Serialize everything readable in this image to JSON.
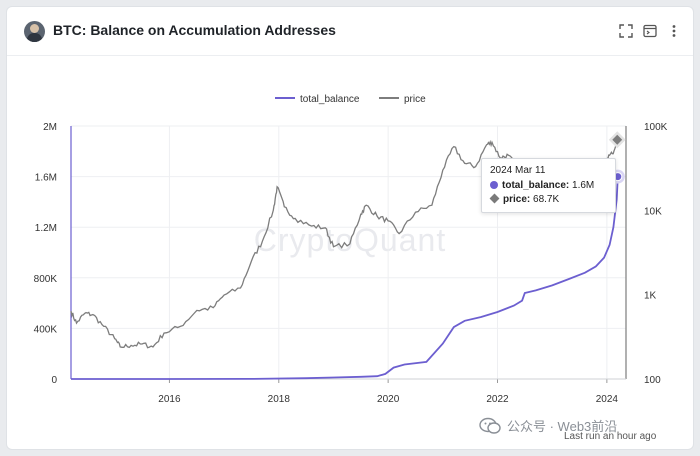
{
  "header": {
    "title": "BTC: Balance on Accumulation Addresses"
  },
  "icons": {
    "expand": "expand-icon",
    "console": "terminal-icon",
    "more": "more-vertical-icon",
    "avatar": "user-avatar"
  },
  "watermark": {
    "text": "公众号 · Web3前沿"
  },
  "footer": {
    "last_run": "Last run an hour ago"
  },
  "tooltip": {
    "date": "2024 Mar 11",
    "balance_label": "total_balance:",
    "balance_value": "1.6M",
    "price_label": "price:",
    "price_value": "68.7K"
  },
  "colors": {
    "balance": "#6c5fd0",
    "price": "#7d7d7d"
  },
  "chart_data": {
    "type": "line",
    "title": "BTC: Balance on Accumulation Addresses",
    "legend": [
      "total_balance",
      "price"
    ],
    "legend_position": "top-center",
    "x_ticks": [
      "2016",
      "2018",
      "2020",
      "2022",
      "2024"
    ],
    "x_range": [
      2014.2,
      2024.35
    ],
    "y_left": {
      "label": "",
      "ticks": [
        "0",
        "400K",
        "800K",
        "1.2M",
        "1.6M",
        "2M"
      ],
      "range": [
        0,
        2000000
      ]
    },
    "y_right": {
      "label": "",
      "scale": "log",
      "ticks": [
        "100",
        "1K",
        "10K",
        "100K"
      ],
      "range": [
        100,
        100000
      ]
    },
    "grid": true,
    "series": [
      {
        "name": "total_balance",
        "axis": "left",
        "points": [
          [
            2014.2,
            0
          ],
          [
            2016.0,
            0
          ],
          [
            2017.5,
            1000
          ],
          [
            2018.5,
            6000
          ],
          [
            2019.0,
            12000
          ],
          [
            2019.5,
            17000
          ],
          [
            2019.8,
            22000
          ],
          [
            2019.95,
            40000
          ],
          [
            2020.1,
            90000
          ],
          [
            2020.3,
            115000
          ],
          [
            2020.7,
            135000
          ],
          [
            2021.0,
            280000
          ],
          [
            2021.2,
            410000
          ],
          [
            2021.4,
            460000
          ],
          [
            2021.7,
            490000
          ],
          [
            2022.0,
            530000
          ],
          [
            2022.3,
            580000
          ],
          [
            2022.45,
            620000
          ],
          [
            2022.5,
            680000
          ],
          [
            2022.7,
            700000
          ],
          [
            2023.0,
            740000
          ],
          [
            2023.3,
            790000
          ],
          [
            2023.6,
            840000
          ],
          [
            2023.8,
            890000
          ],
          [
            2023.95,
            960000
          ],
          [
            2024.05,
            1060000
          ],
          [
            2024.12,
            1200000
          ],
          [
            2024.18,
            1420000
          ],
          [
            2024.2,
            1600000
          ]
        ]
      },
      {
        "name": "price",
        "axis": "right",
        "points": [
          [
            2014.2,
            640
          ],
          [
            2014.3,
            460
          ],
          [
            2014.45,
            600
          ],
          [
            2014.6,
            580
          ],
          [
            2014.8,
            420
          ],
          [
            2015.0,
            300
          ],
          [
            2015.1,
            240
          ],
          [
            2015.3,
            250
          ],
          [
            2015.5,
            260
          ],
          [
            2015.7,
            240
          ],
          [
            2015.9,
            350
          ],
          [
            2016.2,
            420
          ],
          [
            2016.5,
            650
          ],
          [
            2016.8,
            700
          ],
          [
            2017.0,
            990
          ],
          [
            2017.3,
            1200
          ],
          [
            2017.5,
            2500
          ],
          [
            2017.7,
            4300
          ],
          [
            2017.9,
            10000
          ],
          [
            2017.97,
            19000
          ],
          [
            2018.1,
            11000
          ],
          [
            2018.3,
            8000
          ],
          [
            2018.6,
            6500
          ],
          [
            2018.85,
            6200
          ],
          [
            2019.0,
            3700
          ],
          [
            2019.3,
            4000
          ],
          [
            2019.5,
            9000
          ],
          [
            2019.6,
            11500
          ],
          [
            2019.8,
            8500
          ],
          [
            2020.0,
            7500
          ],
          [
            2020.2,
            5300
          ],
          [
            2020.5,
            9500
          ],
          [
            2020.8,
            11500
          ],
          [
            2021.0,
            30000
          ],
          [
            2021.2,
            57000
          ],
          [
            2021.4,
            36000
          ],
          [
            2021.6,
            33000
          ],
          [
            2021.8,
            60000
          ],
          [
            2021.9,
            64000
          ],
          [
            2022.05,
            42000
          ],
          [
            2022.2,
            45000
          ],
          [
            2022.4,
            30000
          ],
          [
            2024.0,
            42000
          ],
          [
            2024.1,
            47000
          ],
          [
            2024.19,
            68700
          ]
        ]
      }
    ]
  }
}
